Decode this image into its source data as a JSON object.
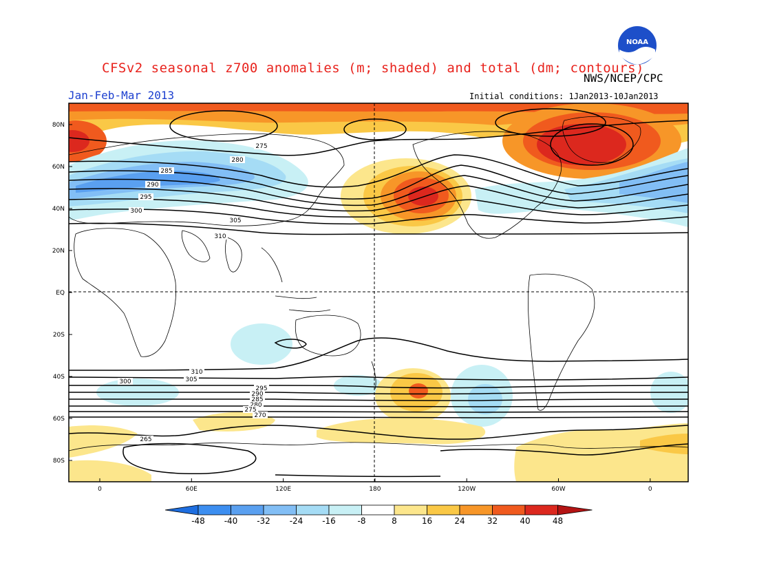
{
  "title": "CFSv2 seasonal z700 anomalies (m; shaded) and total (dm; contours)",
  "agency": "NWS/NCEP/CPC",
  "season": "Jan-Feb-Mar 2013",
  "initial_conditions": "Initial conditions: 1Jan2013-10Jan2013",
  "logo_text": "NOAA",
  "lat_labels": [
    "80N",
    "60N",
    "40N",
    "20N",
    "EQ",
    "20S",
    "40S",
    "60S",
    "80S"
  ],
  "lon_labels": [
    "0",
    "60E",
    "120E",
    "180",
    "120W",
    "60W",
    "0"
  ],
  "colorbar": {
    "ticks": [
      "-48",
      "-40",
      "-32",
      "-24",
      "-16",
      "-8",
      "8",
      "16",
      "24",
      "32",
      "40",
      "48"
    ],
    "colors": [
      "#1e6ee0",
      "#3c8ef0",
      "#5aa0f0",
      "#82bef5",
      "#a5dcf5",
      "#c8f0f5",
      "#ffffff",
      "#fce68c",
      "#fac846",
      "#f79628",
      "#f05a1e",
      "#dc281e",
      "#b41414"
    ]
  },
  "contour_labels_north": [
    "275",
    "280",
    "285",
    "290",
    "295",
    "300",
    "305",
    "310"
  ],
  "contour_labels_south": [
    "310",
    "305",
    "300",
    "295",
    "290",
    "285",
    "280",
    "275",
    "270",
    "265"
  ]
}
